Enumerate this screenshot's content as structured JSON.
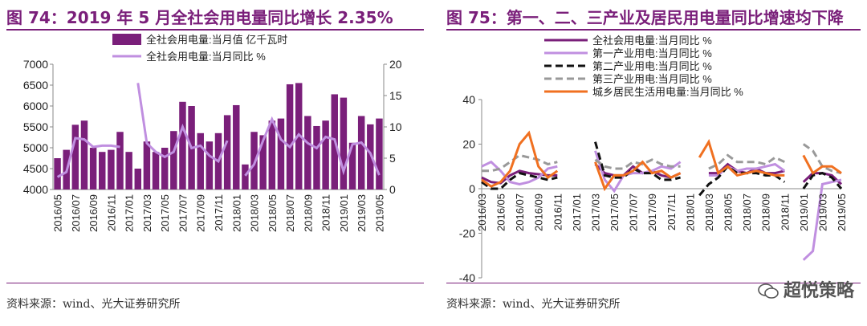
{
  "left": {
    "title": "图 74：2019 年 5 月全社会用电量同比增长 2.35%",
    "source": "资料来源：wind、光大证券研究所"
  },
  "right": {
    "title": "图 75：第一、二、三产业及居民用电量同比增速均下降",
    "source": "资料来源：wind、光大证券研究所",
    "watermark": "超悦策略"
  },
  "colors": {
    "title": "#7a1f7a",
    "bar": "#7a1f7a",
    "lightline": "#c08fe0",
    "black": "#111111",
    "gray": "#999999",
    "orange": "#f07020"
  },
  "chart_data": [
    {
      "type": "bar",
      "title": "",
      "categories": [
        "2016/05",
        "2016/06",
        "2016/07",
        "2016/08",
        "2016/09",
        "2016/10",
        "2016/11",
        "2016/12",
        "2017/01",
        "2017/02",
        "2017/03",
        "2017/04",
        "2017/05",
        "2017/06",
        "2017/07",
        "2017/08",
        "2017/09",
        "2017/10",
        "2017/11",
        "2017/12",
        "2018/01",
        "2018/02",
        "2018/03",
        "2018/04",
        "2018/05",
        "2018/06",
        "2018/07",
        "2018/08",
        "2018/09",
        "2018/10",
        "2018/11",
        "2018/12",
        "2019/01",
        "2019/02",
        "2019/03",
        "2019/04",
        "2019/05"
      ],
      "tick_labels": [
        "2016/05",
        "2016/07",
        "2016/09",
        "2016/11",
        "2017/01",
        "2017/03",
        "2017/05",
        "2017/07",
        "2017/09",
        "2017/11",
        "2018/01",
        "2018/03",
        "2018/05",
        "2018/07",
        "2018/09",
        "2018/11",
        "2019/01",
        "2019/03",
        "2019/05"
      ],
      "ylim": [
        4000,
        7000
      ],
      "yticks": [
        4000,
        4500,
        5000,
        5500,
        6000,
        6500,
        7000
      ],
      "y2lim": [
        0,
        20
      ],
      "y2ticks": [
        0,
        5,
        10,
        15,
        20
      ],
      "legend_position": "top",
      "series": [
        {
          "name": "全社会用电量:当月值 亿千瓦时",
          "kind": "bar",
          "axis": "left",
          "values": [
            4750,
            4950,
            5550,
            5650,
            5000,
            4900,
            4950,
            5380,
            4900,
            4500,
            5150,
            4900,
            5000,
            5400,
            6100,
            6000,
            5350,
            5150,
            5350,
            5780,
            6020,
            4600,
            5380,
            5300,
            5650,
            5700,
            6520,
            6550,
            5760,
            5520,
            5650,
            6280,
            6200,
            5120,
            5760,
            5560,
            5700
          ]
        },
        {
          "name": "全社会用电量:当月同比 %",
          "kind": "line",
          "axis": "right",
          "values": [
            2.0,
            2.8,
            8.2,
            8.0,
            6.8,
            7.0,
            7.0,
            6.8,
            null,
            17.0,
            7.4,
            6.0,
            5.2,
            6.0,
            10.0,
            6.6,
            7.0,
            5.4,
            4.5,
            7.8,
            null,
            2.2,
            4.0,
            7.8,
            11.2,
            8.0,
            6.8,
            8.8,
            7.4,
            6.6,
            8.4,
            8.0,
            2.9,
            7.2,
            7.5,
            5.8,
            2.3
          ]
        }
      ]
    },
    {
      "type": "line",
      "title": "",
      "categories": [
        "2016/03",
        "2016/04",
        "2016/05",
        "2016/06",
        "2016/07",
        "2016/08",
        "2016/09",
        "2016/10",
        "2016/11",
        "2016/12",
        "2017/01",
        "2017/02",
        "2017/03",
        "2017/04",
        "2017/05",
        "2017/06",
        "2017/07",
        "2017/08",
        "2017/09",
        "2017/10",
        "2017/11",
        "2017/12",
        "2018/01",
        "2018/02",
        "2018/03",
        "2018/04",
        "2018/05",
        "2018/06",
        "2018/07",
        "2018/08",
        "2018/09",
        "2018/10",
        "2018/11",
        "2018/12",
        "2019/01",
        "2019/02",
        "2019/03",
        "2019/04",
        "2019/05"
      ],
      "tick_labels": [
        "2016/03",
        "2016/05",
        "2016/07",
        "2016/09",
        "2016/11",
        "2017/01",
        "2017/03",
        "2017/05",
        "2017/07",
        "2017/09",
        "2017/11",
        "2018/01",
        "2018/03",
        "2018/05",
        "2018/07",
        "2018/09",
        "2018/11",
        "2019/01",
        "2019/03",
        "2019/05"
      ],
      "ylim": [
        -40,
        40
      ],
      "yticks": [
        -40,
        -20,
        0,
        20,
        40
      ],
      "legend_position": "top-left",
      "series": [
        {
          "name": "全社会用电量:当月同比 %",
          "style": "solid-purple",
          "values": [
            5,
            3,
            2.5,
            6,
            8,
            7,
            6.5,
            6,
            6,
            null,
            null,
            null,
            11,
            7,
            6,
            6,
            10,
            7,
            8,
            6,
            5,
            7,
            null,
            null,
            7,
            7,
            11,
            8,
            7,
            9,
            7,
            7,
            8,
            null,
            3,
            7,
            7,
            6,
            2
          ]
        },
        {
          "name": "第一产业用电:当月同比 %",
          "style": "solid-lilac",
          "values": [
            10,
            12,
            8,
            3,
            2,
            3,
            5,
            9,
            10,
            null,
            null,
            null,
            17,
            4,
            -1,
            6,
            7,
            7,
            8,
            10,
            9,
            12,
            null,
            null,
            6,
            6,
            10,
            8,
            9,
            9,
            10,
            11,
            8,
            null,
            -32,
            -28,
            2,
            3,
            4
          ]
        },
        {
          "name": "第二产业用电:当月同比 %",
          "style": "dash-black",
          "values": [
            3,
            0,
            0,
            4,
            7,
            6,
            5,
            4,
            5,
            null,
            null,
            null,
            21,
            6,
            5,
            5,
            9,
            7,
            7,
            4,
            4,
            5,
            null,
            -3,
            2,
            5,
            10,
            7,
            7,
            7,
            6,
            6,
            3,
            null,
            0,
            6,
            7,
            5,
            0
          ]
        },
        {
          "name": "第三产业用电:当月同比 %",
          "style": "dash-gray",
          "values": [
            8,
            8,
            9,
            12,
            15,
            14,
            13,
            11,
            12,
            null,
            null,
            null,
            13,
            10,
            9,
            9,
            12,
            11,
            13,
            11,
            10,
            10,
            null,
            null,
            9,
            11,
            15,
            12,
            12,
            12,
            11,
            14,
            12,
            null,
            20,
            17,
            10,
            8,
            7
          ]
        },
        {
          "name": "城乡居民生活用电量:当月同比 %",
          "style": "solid-orange",
          "values": [
            4,
            1,
            3,
            8,
            20,
            25,
            10,
            5,
            8,
            null,
            null,
            null,
            12,
            0,
            6,
            6,
            8,
            12,
            7,
            8,
            5,
            7,
            null,
            14,
            21,
            7,
            10,
            6,
            7,
            8,
            7,
            6,
            6,
            null,
            15,
            7,
            10,
            10,
            7
          ]
        }
      ]
    }
  ]
}
